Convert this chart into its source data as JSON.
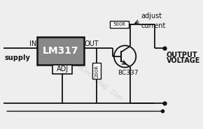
{
  "bg_color": "#eeeeee",
  "line_color": "#111111",
  "box_fill": "#888888",
  "box_text": "LM317",
  "box_text_color": "#ffffff",
  "resistor1_label": "200R",
  "resistor2_label": "500R",
  "transistor_label": "BC337",
  "label_IN": "IN",
  "label_OUT": "OUT",
  "label_ADJ": "ADJ",
  "label_supply": "supply",
  "label_output1": "OUTPUT",
  "label_output2": "VOLTAGE",
  "label_adjust1": "adjust",
  "label_adjust2": "current",
  "small_fontsize": 7,
  "fig_width": 2.9,
  "fig_height": 1.85,
  "dpi": 100
}
